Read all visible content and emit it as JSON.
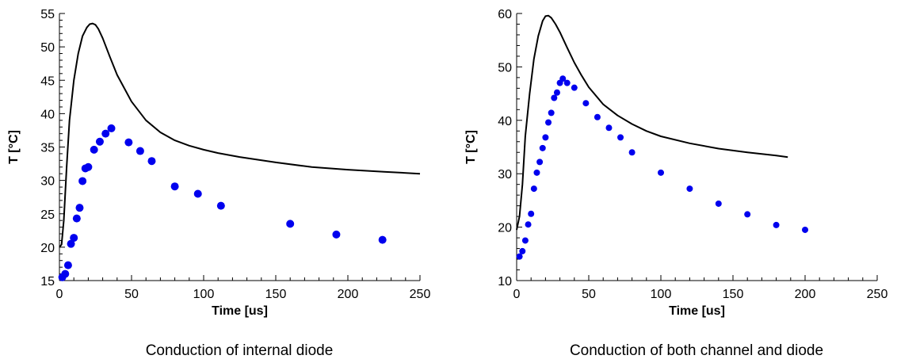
{
  "chart_data": [
    {
      "type": "scatter",
      "caption": "Conduction of internal diode",
      "xlabel": "Time [us]",
      "ylabel": "T [°C]",
      "xlim": [
        0,
        250
      ],
      "ylim": [
        15,
        55
      ],
      "xticks": [
        0,
        50,
        100,
        150,
        200,
        250
      ],
      "yticks": [
        15,
        20,
        25,
        30,
        35,
        40,
        45,
        50,
        55
      ],
      "grid": false,
      "colors": {
        "line": "#000000",
        "points": "#0000ee"
      },
      "series": [
        {
          "kind": "line",
          "x": [
            0,
            1.5,
            3,
            5,
            7,
            10,
            13,
            16,
            19,
            21,
            23,
            25,
            27,
            30,
            35,
            40,
            50,
            60,
            70,
            80,
            90,
            100,
            110,
            125,
            150,
            175,
            200,
            225,
            250
          ],
          "y": [
            20.0,
            20.4,
            24.0,
            32.0,
            39.0,
            45.0,
            49.0,
            51.6,
            52.9,
            53.4,
            53.5,
            53.3,
            52.7,
            51.3,
            48.5,
            45.8,
            41.8,
            39.0,
            37.2,
            36.0,
            35.2,
            34.6,
            34.1,
            33.5,
            32.7,
            32.0,
            31.6,
            31.3,
            31.0
          ]
        },
        {
          "kind": "points",
          "x": [
            2,
            4,
            6,
            8,
            10,
            12,
            14,
            16,
            18,
            20,
            24,
            28,
            32,
            36,
            48,
            56,
            64,
            80,
            96,
            112,
            160,
            192,
            224
          ],
          "y": [
            15.5,
            16.0,
            17.3,
            20.5,
            21.4,
            24.3,
            25.9,
            29.9,
            31.8,
            32.0,
            34.6,
            35.8,
            37.0,
            37.8,
            35.7,
            34.4,
            32.9,
            29.1,
            28.0,
            26.2,
            23.5,
            21.9,
            21.1
          ]
        }
      ]
    },
    {
      "type": "scatter",
      "caption": "Conduction of both channel and diode",
      "xlabel": "Time [us]",
      "ylabel": "T [°C]",
      "xlim": [
        0,
        250
      ],
      "ylim": [
        10,
        60
      ],
      "xticks": [
        0,
        50,
        100,
        150,
        200,
        250
      ],
      "yticks": [
        10,
        20,
        30,
        40,
        50,
        60
      ],
      "grid": false,
      "colors": {
        "line": "#000000",
        "points": "#0000ee"
      },
      "series": [
        {
          "kind": "line",
          "x": [
            0,
            2,
            4,
            6,
            9,
            12,
            15,
            18,
            20,
            22,
            24,
            27,
            30,
            35,
            40,
            45,
            50,
            60,
            70,
            80,
            90,
            100,
            120,
            140,
            160,
            180,
            188
          ],
          "y": [
            19.5,
            22.0,
            28.0,
            37.0,
            45.0,
            51.5,
            55.8,
            58.6,
            59.5,
            59.6,
            59.2,
            58.0,
            56.5,
            53.6,
            50.8,
            48.4,
            46.2,
            43.0,
            40.9,
            39.3,
            38.0,
            37.0,
            35.7,
            34.7,
            34.0,
            33.4,
            33.1
          ]
        },
        {
          "kind": "points",
          "x": [
            2,
            4,
            6,
            8,
            10,
            12,
            14,
            16,
            18,
            20,
            22,
            24,
            26,
            28,
            30,
            32,
            35,
            40,
            48,
            56,
            64,
            72,
            80,
            100,
            120,
            140,
            160,
            180,
            200
          ],
          "y": [
            14.5,
            15.5,
            17.5,
            20.5,
            22.5,
            27.2,
            30.2,
            32.2,
            34.8,
            36.8,
            39.6,
            41.4,
            44.2,
            45.2,
            47.0,
            47.8,
            47.0,
            46.1,
            43.2,
            40.6,
            38.6,
            36.8,
            34.0,
            30.2,
            27.2,
            24.4,
            22.4,
            20.4,
            19.5
          ]
        }
      ]
    }
  ]
}
